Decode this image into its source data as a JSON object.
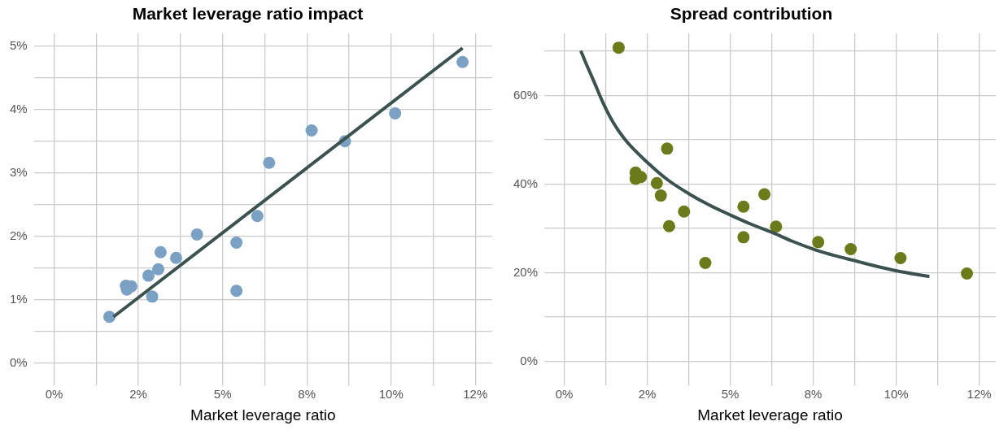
{
  "chart_data": [
    {
      "type": "scatter",
      "title": "Market leverage ratio impact",
      "xlabel": "Market leverage ratio",
      "xlim": [
        -0.6,
        13
      ],
      "xticks": [
        {
          "value": 0,
          "label": "0%"
        },
        {
          "value": 1.25,
          "label": null
        },
        {
          "value": 2.5,
          "label": "2%"
        },
        {
          "value": 3.75,
          "label": null
        },
        {
          "value": 5,
          "label": "5%"
        },
        {
          "value": 6.25,
          "label": null
        },
        {
          "value": 7.5,
          "label": "8%"
        },
        {
          "value": 8.75,
          "label": null
        },
        {
          "value": 10,
          "label": "10%"
        },
        {
          "value": 11.25,
          "label": null
        },
        {
          "value": 12.5,
          "label": "12%"
        }
      ],
      "ylim": [
        -0.25,
        5.2
      ],
      "yticks": [
        {
          "value": 0,
          "label": "0%"
        },
        {
          "value": 0.5,
          "label": null
        },
        {
          "value": 1,
          "label": "1%"
        },
        {
          "value": 1.5,
          "label": null
        },
        {
          "value": 2,
          "label": "2%"
        },
        {
          "value": 2.5,
          "label": null
        },
        {
          "value": 3,
          "label": "3%"
        },
        {
          "value": 3.5,
          "label": null
        },
        {
          "value": 4,
          "label": "4%"
        },
        {
          "value": 4.5,
          "label": null
        },
        {
          "value": 5,
          "label": "5%"
        }
      ],
      "grid": true,
      "legend": false,
      "series": [
        {
          "marker": "circle",
          "color": "#7aa0c4",
          "x": [
            1.64,
            2.13,
            2.16,
            2.29,
            2.8,
            2.91,
            3.09,
            3.16,
            3.62,
            4.24,
            5.41,
            5.41,
            6.03,
            6.38,
            7.64,
            8.63,
            10.12,
            12.12
          ],
          "values": [
            0.73,
            1.22,
            1.16,
            1.21,
            1.38,
            1.05,
            1.48,
            1.75,
            1.66,
            2.03,
            1.9,
            1.14,
            2.32,
            3.16,
            3.67,
            3.5,
            3.94,
            4.75
          ]
        },
        {
          "type": "line",
          "marker": "none",
          "color": "#3b524f",
          "x": [
            1.76,
            12.12
          ],
          "values": [
            0.73,
            4.97
          ]
        }
      ]
    },
    {
      "type": "scatter",
      "title": "Spread contribution",
      "xlabel": "Market leverage ratio",
      "xlim": [
        -0.6,
        13
      ],
      "xticks": [
        {
          "value": 0,
          "label": "0%"
        },
        {
          "value": 1.25,
          "label": null
        },
        {
          "value": 2.5,
          "label": "2%"
        },
        {
          "value": 3.75,
          "label": null
        },
        {
          "value": 5,
          "label": "5%"
        },
        {
          "value": 6.25,
          "label": null
        },
        {
          "value": 7.5,
          "label": "8%"
        },
        {
          "value": 8.75,
          "label": null
        },
        {
          "value": 10,
          "label": "10%"
        },
        {
          "value": 11.25,
          "label": null
        },
        {
          "value": 12.5,
          "label": "12%"
        }
      ],
      "ylim": [
        -4,
        74
      ],
      "yticks": [
        {
          "value": 0,
          "label": "0%"
        },
        {
          "value": 10,
          "label": null
        },
        {
          "value": 20,
          "label": "20%"
        },
        {
          "value": 30,
          "label": null
        },
        {
          "value": 40,
          "label": "40%"
        },
        {
          "value": 50,
          "label": null
        },
        {
          "value": 60,
          "label": "60%"
        },
        {
          "value": 70,
          "label": null
        }
      ],
      "grid": true,
      "legend": false,
      "series": [
        {
          "marker": "circle",
          "color": "#6b7a1a",
          "x": [
            1.64,
            2.15,
            2.15,
            2.31,
            2.79,
            2.91,
            3.1,
            3.16,
            3.61,
            4.25,
            5.4,
            5.4,
            6.03,
            6.38,
            7.65,
            8.63,
            10.13,
            12.13
          ],
          "values": [
            70.8,
            42.6,
            41.2,
            41.6,
            40.2,
            37.4,
            48.0,
            30.5,
            33.8,
            22.2,
            34.9,
            28.0,
            37.7,
            30.4,
            26.9,
            25.3,
            23.3,
            19.8
          ]
        },
        {
          "type": "line",
          "marker": "none",
          "color": "#3b524f",
          "x": [
            0.5,
            0.7,
            0.9,
            1.18,
            1.47,
            1.86,
            2.49,
            3.11,
            3.76,
            4.36,
            5.01,
            5.61,
            6.26,
            6.87,
            7.51,
            8.12,
            8.76,
            9.37,
            10.02,
            11.0
          ],
          "values": [
            70.1,
            66.5,
            63.1,
            58.2,
            54.0,
            49.8,
            45.0,
            41.0,
            37.8,
            35.3,
            33.0,
            31.0,
            29.1,
            27.1,
            25.3,
            23.9,
            22.7,
            21.5,
            20.4,
            19.1
          ]
        }
      ]
    }
  ]
}
